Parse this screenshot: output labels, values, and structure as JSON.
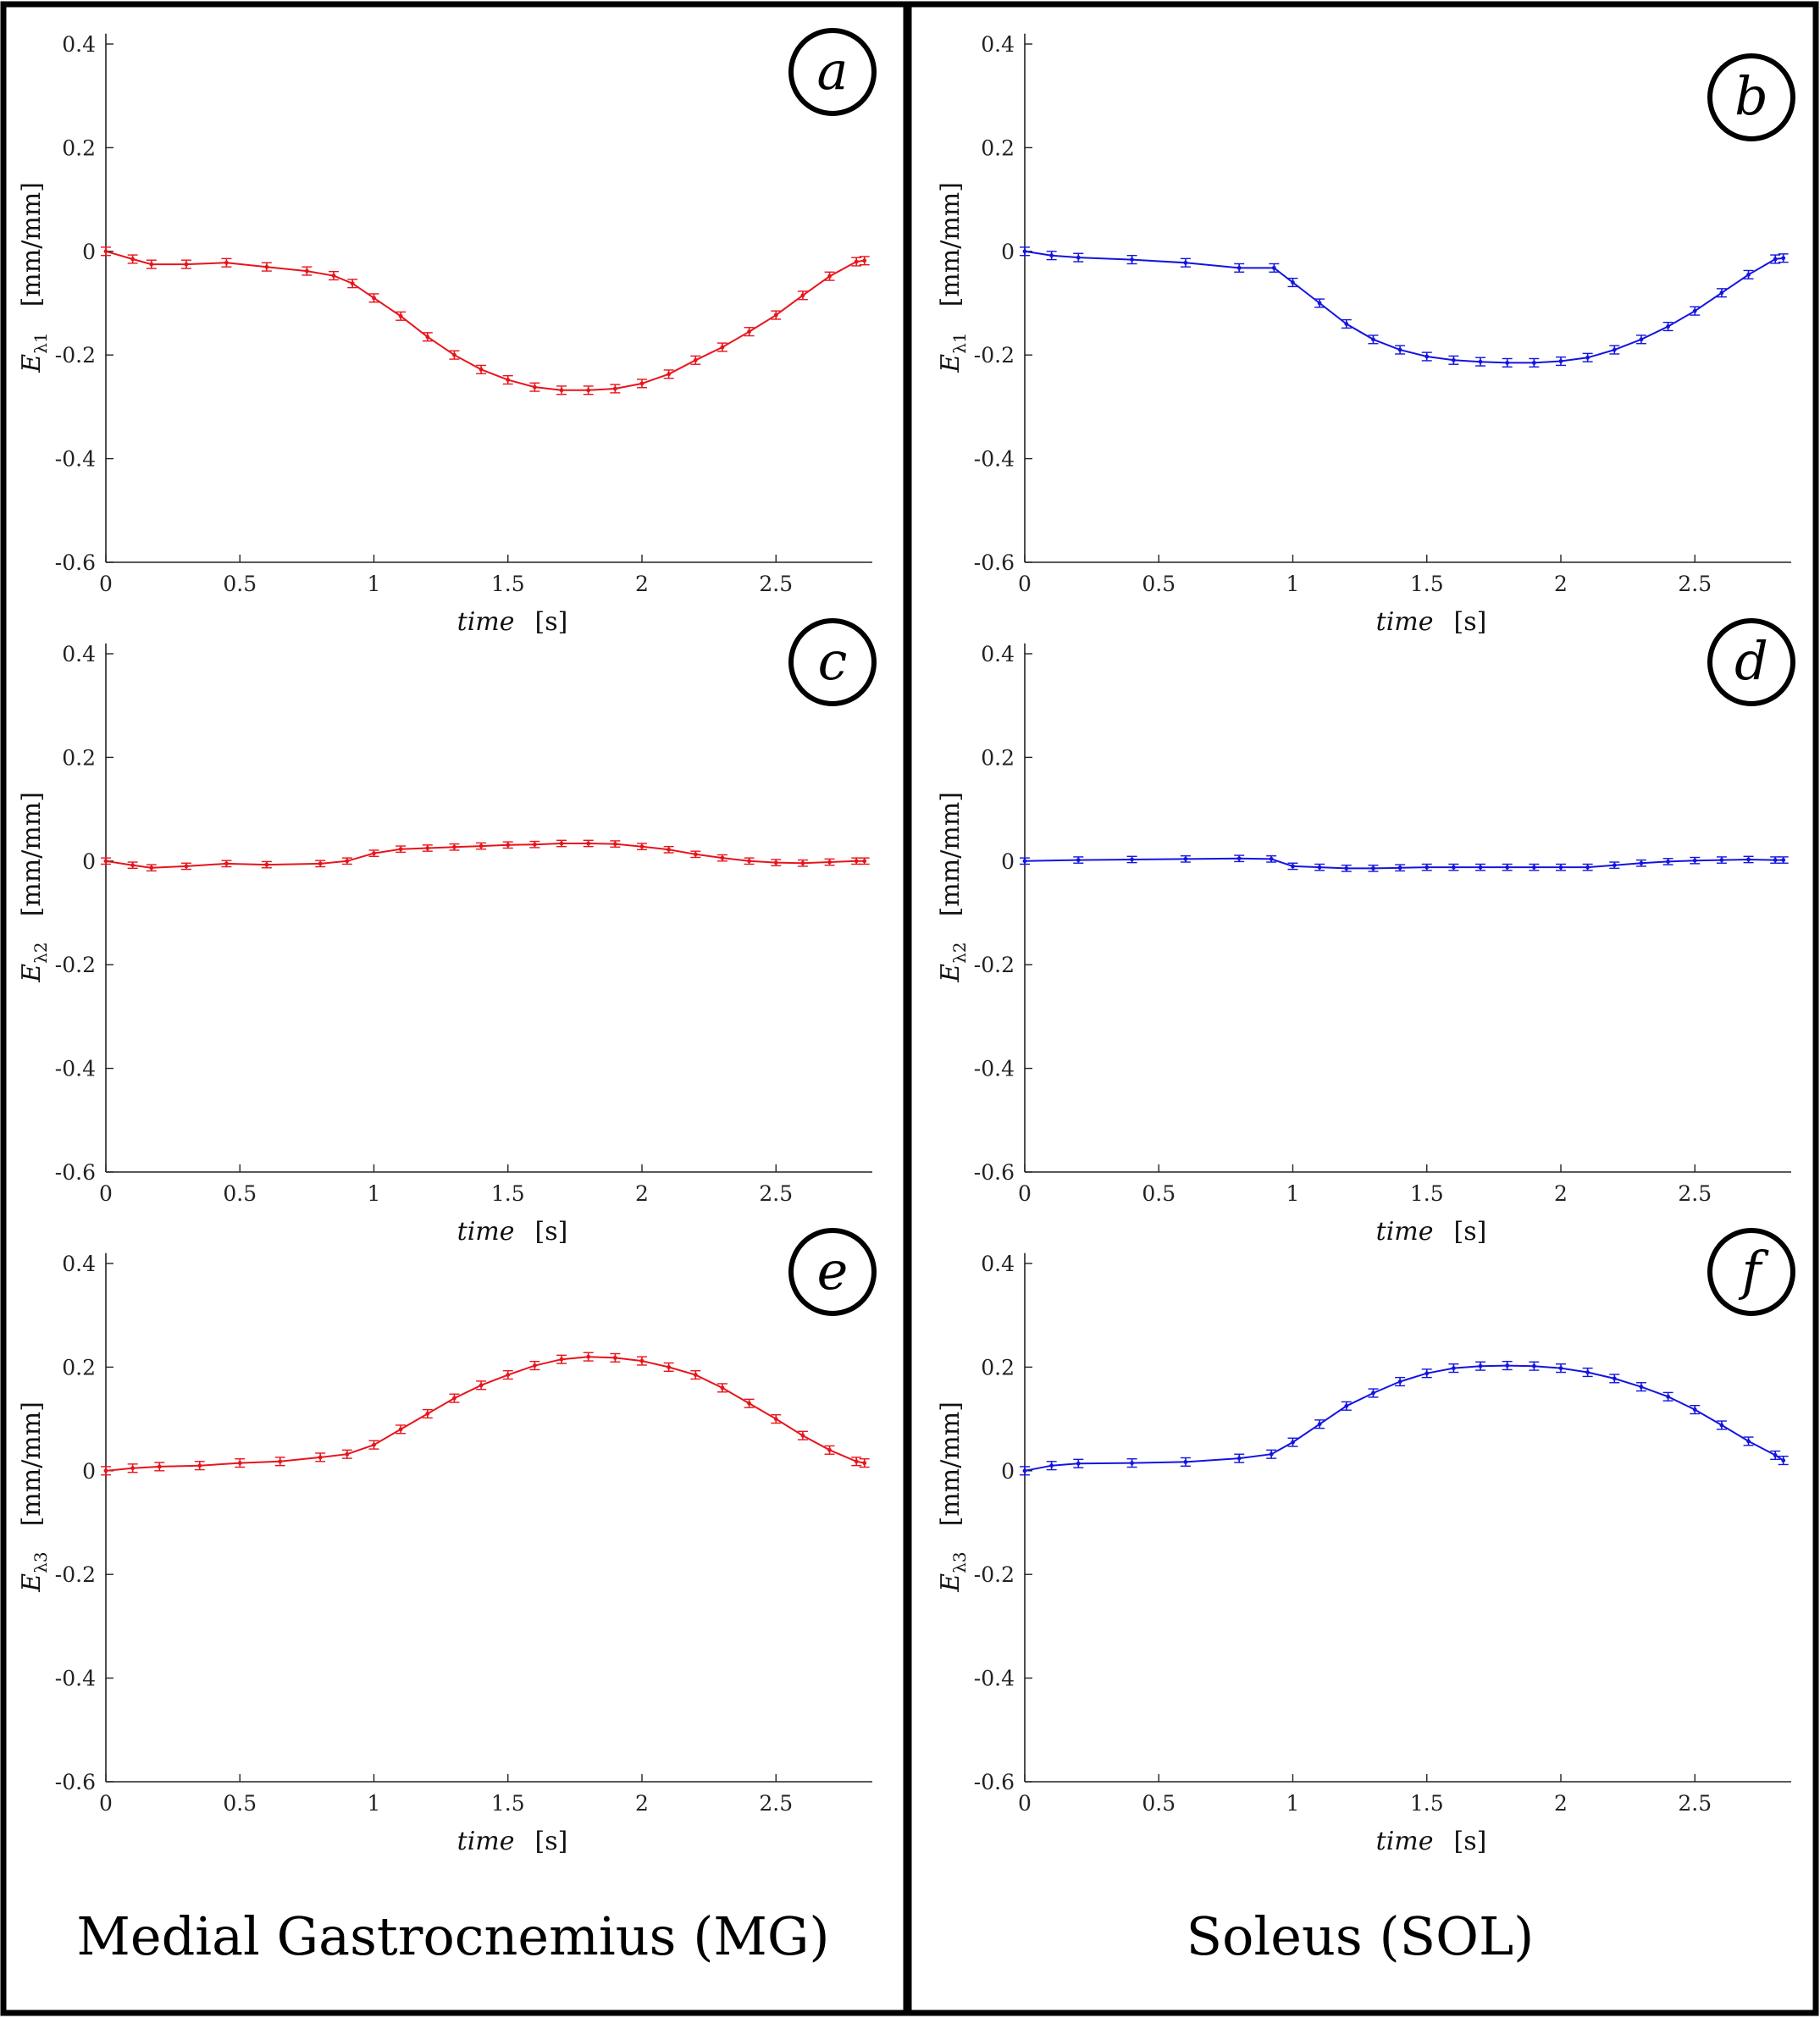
{
  "figure": {
    "left_column_caption": "Medial Gastrocnemius (MG)",
    "right_column_caption": "Soleus (SOL)"
  },
  "axis_common": {
    "xlabel_var": "time",
    "xlabel_unit": "[s]",
    "ylabel_unit": "[mm/mm]",
    "ylabel_var": "E",
    "x_ticks": [
      0,
      0.5,
      1,
      1.5,
      2,
      2.5
    ],
    "x_tick_labels": [
      "0",
      "0.5",
      "1",
      "1.5",
      "2",
      "2.5"
    ],
    "y_ticks": [
      0.4,
      0.2,
      0,
      -0.2,
      -0.4,
      -0.6
    ],
    "y_tick_labels": [
      "0.4",
      "0.2",
      "0",
      "-0.2",
      "-0.4",
      "-0.6"
    ],
    "xlim": [
      0,
      2.85
    ],
    "ylim": [
      -0.6,
      0.42
    ]
  },
  "colors": {
    "MG": "#e8141b",
    "SOL": "#1414e0",
    "axis": "#222222",
    "frame": "#000000"
  },
  "chart_data": [
    {
      "type": "line",
      "panel": "a",
      "muscle": "Medial Gastrocnemius (MG)",
      "ylabel_sub": "λ1",
      "color": "#e8141b",
      "x": [
        0,
        0.1,
        0.17,
        0.3,
        0.45,
        0.6,
        0.75,
        0.85,
        0.92,
        1.0,
        1.1,
        1.2,
        1.3,
        1.4,
        1.5,
        1.6,
        1.7,
        1.8,
        1.9,
        2.0,
        2.1,
        2.2,
        2.3,
        2.4,
        2.5,
        2.6,
        2.7,
        2.8,
        2.83
      ],
      "y": [
        0,
        -0.015,
        -0.025,
        -0.025,
        -0.022,
        -0.03,
        -0.038,
        -0.047,
        -0.062,
        -0.09,
        -0.125,
        -0.165,
        -0.2,
        -0.228,
        -0.248,
        -0.262,
        -0.268,
        -0.268,
        -0.265,
        -0.255,
        -0.237,
        -0.21,
        -0.185,
        -0.155,
        -0.123,
        -0.085,
        -0.048,
        -0.02,
        -0.018
      ],
      "err": 0.008
    },
    {
      "type": "line",
      "panel": "b",
      "muscle": "Soleus (SOL)",
      "ylabel_sub": "λ1",
      "color": "#1414e0",
      "x": [
        0,
        0.1,
        0.2,
        0.4,
        0.6,
        0.8,
        0.93,
        1.0,
        1.1,
        1.2,
        1.3,
        1.4,
        1.5,
        1.6,
        1.7,
        1.8,
        1.9,
        2.0,
        2.1,
        2.2,
        2.3,
        2.4,
        2.5,
        2.6,
        2.7,
        2.8,
        2.83
      ],
      "y": [
        0,
        -0.008,
        -0.012,
        -0.016,
        -0.022,
        -0.032,
        -0.032,
        -0.06,
        -0.1,
        -0.14,
        -0.17,
        -0.19,
        -0.203,
        -0.21,
        -0.213,
        -0.215,
        -0.215,
        -0.212,
        -0.205,
        -0.19,
        -0.17,
        -0.145,
        -0.115,
        -0.08,
        -0.045,
        -0.015,
        -0.013
      ],
      "err": 0.008
    },
    {
      "type": "line",
      "panel": "c",
      "muscle": "Medial Gastrocnemius (MG)",
      "ylabel_sub": "λ2",
      "color": "#e8141b",
      "x": [
        0,
        0.1,
        0.17,
        0.3,
        0.45,
        0.6,
        0.8,
        0.9,
        1.0,
        1.1,
        1.2,
        1.3,
        1.4,
        1.5,
        1.6,
        1.7,
        1.8,
        1.9,
        2.0,
        2.1,
        2.2,
        2.3,
        2.4,
        2.5,
        2.6,
        2.7,
        2.8,
        2.83
      ],
      "y": [
        0,
        -0.008,
        -0.013,
        -0.01,
        -0.005,
        -0.007,
        -0.005,
        0.0,
        0.015,
        0.023,
        0.025,
        0.027,
        0.029,
        0.031,
        0.032,
        0.034,
        0.034,
        0.033,
        0.028,
        0.022,
        0.013,
        0.006,
        0.0,
        -0.003,
        -0.004,
        -0.002,
        0.0,
        0.0
      ],
      "err": 0.006
    },
    {
      "type": "line",
      "panel": "d",
      "muscle": "Soleus (SOL)",
      "ylabel_sub": "λ2",
      "color": "#1414e0",
      "x": [
        0,
        0.2,
        0.4,
        0.6,
        0.8,
        0.92,
        1.0,
        1.1,
        1.2,
        1.3,
        1.4,
        1.5,
        1.6,
        1.7,
        1.8,
        1.9,
        2.0,
        2.1,
        2.2,
        2.3,
        2.4,
        2.5,
        2.6,
        2.7,
        2.8,
        2.83
      ],
      "y": [
        0,
        0.002,
        0.003,
        0.004,
        0.005,
        0.004,
        -0.01,
        -0.012,
        -0.014,
        -0.014,
        -0.013,
        -0.012,
        -0.012,
        -0.012,
        -0.012,
        -0.012,
        -0.012,
        -0.012,
        -0.008,
        -0.004,
        -0.001,
        0.001,
        0.002,
        0.003,
        0.002,
        0.002
      ],
      "err": 0.006
    },
    {
      "type": "line",
      "panel": "e",
      "muscle": "Medial Gastrocnemius (MG)",
      "ylabel_sub": "λ3",
      "color": "#e8141b",
      "x": [
        0,
        0.1,
        0.2,
        0.35,
        0.5,
        0.65,
        0.8,
        0.9,
        1.0,
        1.1,
        1.2,
        1.3,
        1.4,
        1.5,
        1.6,
        1.7,
        1.8,
        1.9,
        2.0,
        2.1,
        2.2,
        2.3,
        2.4,
        2.5,
        2.6,
        2.7,
        2.8,
        2.83
      ],
      "y": [
        0,
        0.005,
        0.008,
        0.01,
        0.015,
        0.018,
        0.026,
        0.032,
        0.05,
        0.08,
        0.11,
        0.14,
        0.165,
        0.185,
        0.203,
        0.215,
        0.22,
        0.218,
        0.212,
        0.2,
        0.185,
        0.16,
        0.13,
        0.1,
        0.068,
        0.04,
        0.018,
        0.015
      ],
      "err": 0.008
    },
    {
      "type": "line",
      "panel": "f",
      "muscle": "Soleus (SOL)",
      "ylabel_sub": "λ3",
      "color": "#1414e0",
      "x": [
        0,
        0.1,
        0.2,
        0.4,
        0.6,
        0.8,
        0.92,
        1.0,
        1.1,
        1.2,
        1.3,
        1.4,
        1.5,
        1.6,
        1.7,
        1.8,
        1.9,
        2.0,
        2.1,
        2.2,
        2.3,
        2.4,
        2.5,
        2.6,
        2.7,
        2.8,
        2.83
      ],
      "y": [
        0,
        0.01,
        0.014,
        0.015,
        0.017,
        0.024,
        0.032,
        0.055,
        0.09,
        0.125,
        0.15,
        0.172,
        0.188,
        0.198,
        0.202,
        0.203,
        0.202,
        0.198,
        0.19,
        0.178,
        0.162,
        0.143,
        0.118,
        0.088,
        0.057,
        0.03,
        0.02
      ],
      "err": 0.008
    }
  ]
}
